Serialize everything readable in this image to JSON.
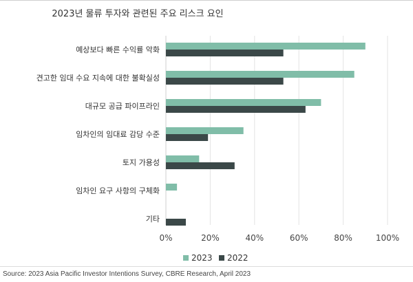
{
  "chart_data": {
    "type": "bar",
    "orientation": "horizontal",
    "title": "2023년 물류 투자와 관련된 주요 리스크 요인",
    "categories": [
      "예상보다 빠른 수익률 악화",
      "견고한 임대 수요 지속에 대한 불확실성",
      "대규모 공급 파이프라인",
      "임차인의 임대료 감당 수준",
      "토지 가용성",
      "임차인 요구 사항의 구체화",
      "기타"
    ],
    "series": [
      {
        "name": "2023",
        "color": "#80bda8",
        "values": [
          90,
          85,
          70,
          35,
          15,
          5,
          0
        ]
      },
      {
        "name": "2022",
        "color": "#3b4848",
        "values": [
          53,
          53,
          63,
          19,
          31,
          0,
          9
        ]
      }
    ],
    "xlim": [
      0,
      100
    ],
    "xticks": [
      "0%",
      "20%",
      "40%",
      "60%",
      "80%",
      "100%"
    ],
    "grid": true,
    "legend_position": "bottom"
  },
  "source": "Source: 2023 Asia Pacific Investor Intentions Survey, CBRE Research, April 2023"
}
